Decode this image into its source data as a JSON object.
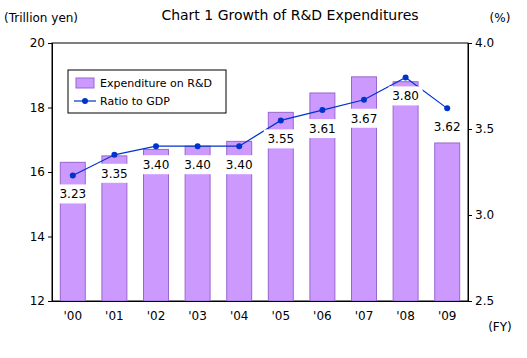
{
  "chart_data": {
    "type": "bar",
    "title": "Chart 1 Growth of R&D Expenditures",
    "categories": [
      "'00",
      "'01",
      "'02",
      "'03",
      "'04",
      "'05",
      "'06",
      "'07",
      "'08",
      "'09"
    ],
    "series": [
      {
        "name": "Expenditure on R&D",
        "type": "bar",
        "color": "#cc99ff",
        "values": [
          16.3,
          16.5,
          16.7,
          16.8,
          16.95,
          17.85,
          18.45,
          18.95,
          18.8,
          16.9
        ]
      },
      {
        "name": "Ratio to GDP",
        "type": "line",
        "axis": "y2",
        "color": "#0033cc",
        "marker": "circle",
        "line_style": "solid",
        "data_labels": true,
        "values": [
          3.23,
          3.35,
          3.4,
          3.4,
          3.4,
          3.55,
          3.61,
          3.67,
          3.8,
          3.62
        ],
        "value_labels": [
          "3.23",
          "3.35",
          "3.40",
          "3.40",
          "3.40",
          "3.55",
          "3.61",
          "3.67",
          "3.80",
          "3.62"
        ]
      }
    ],
    "ylabel": "(Trillion yen)",
    "y2label": "(%)",
    "xlabel": "(FY)",
    "ylim": [
      12,
      20
    ],
    "yticks": [
      12,
      14,
      16,
      18,
      20
    ],
    "y2lim": [
      2.5,
      4.0
    ],
    "y2ticks": [
      2.5,
      {
        "value": 3,
        "label": "3.0"
      },
      {
        "value": 3.5,
        "label": "3.5"
      },
      {
        "value": 4,
        "label": "4.0"
      }
    ],
    "legend": "top-left",
    "grid": false
  }
}
